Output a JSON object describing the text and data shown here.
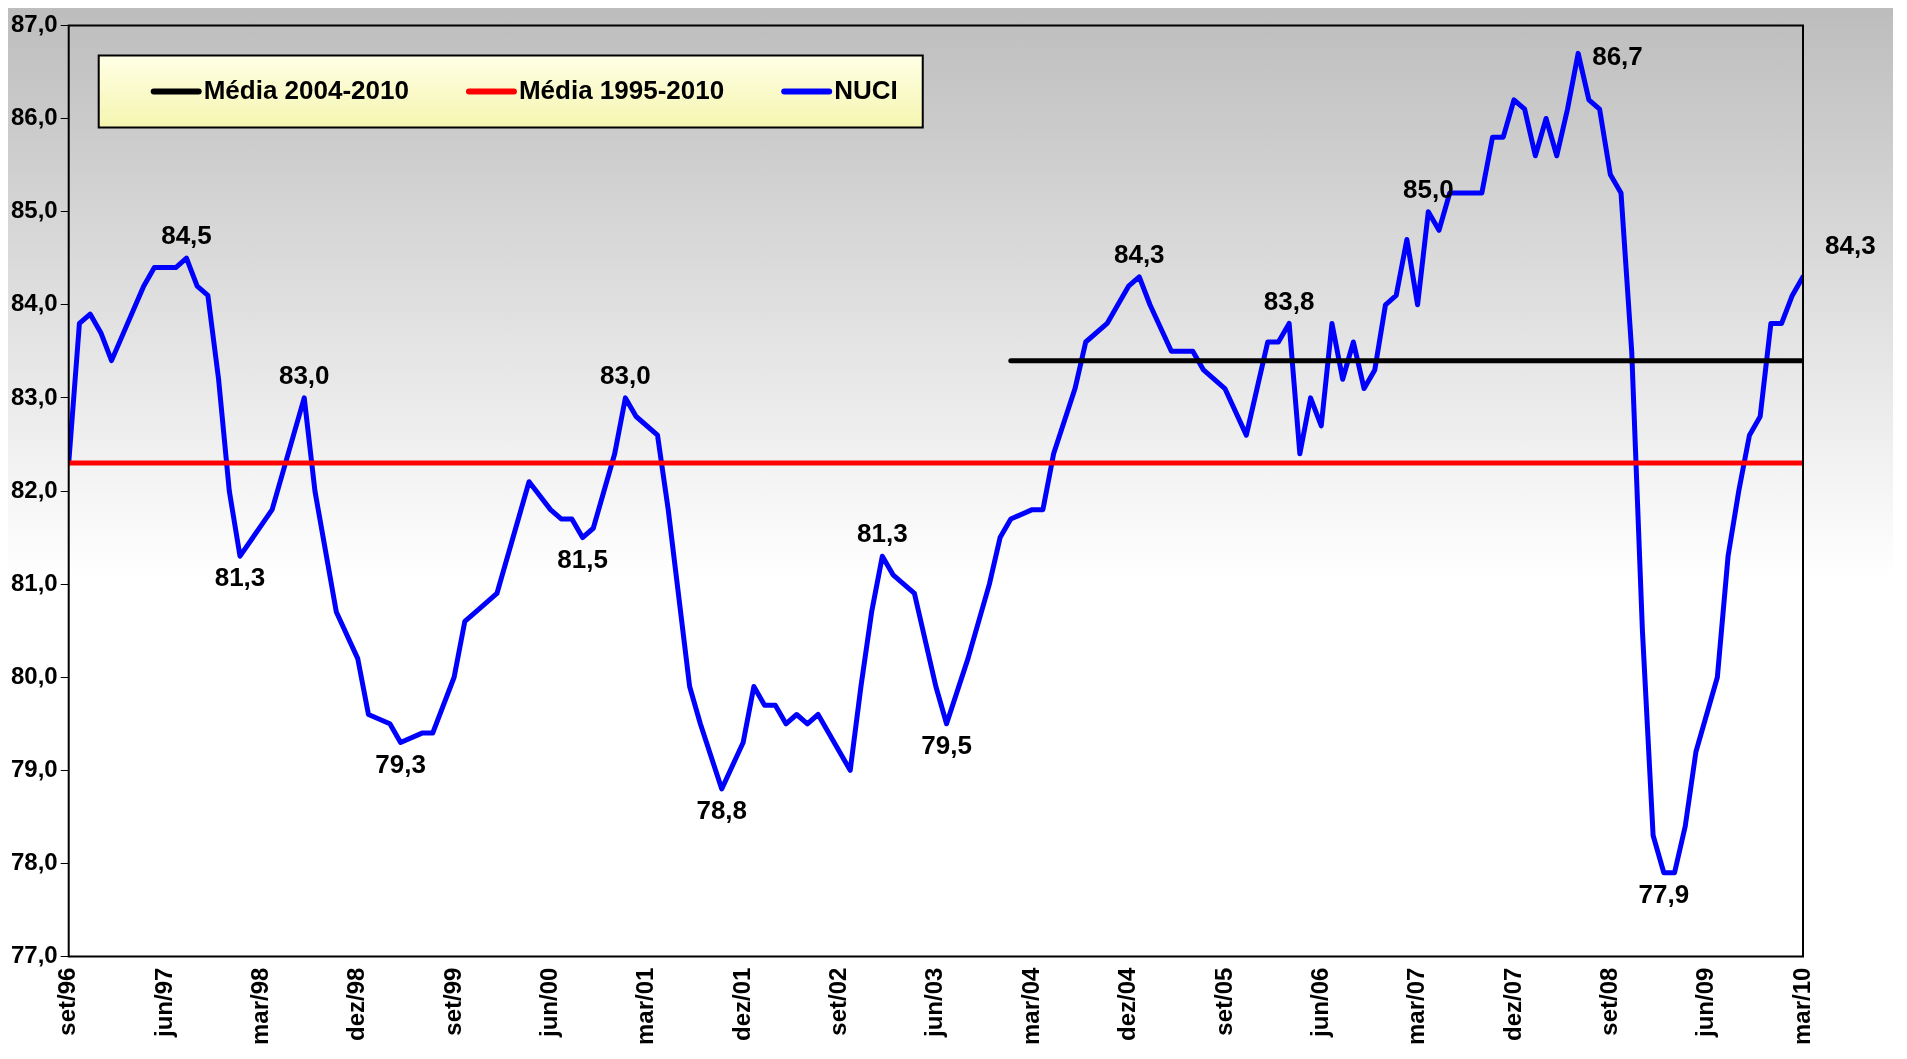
{
  "chart_data": {
    "type": "line",
    "legend": "top left",
    "grid": false,
    "marker": "none",
    "line_style": "solid",
    "xlim": [
      "1996-09",
      "2010-03"
    ],
    "xticks": [
      {
        "value": "1996-09",
        "label": "set/96"
      },
      {
        "value": "1997-06",
        "label": "jun/97"
      },
      {
        "value": "1998-03",
        "label": "mar/98"
      },
      {
        "value": "1998-12",
        "label": "dez/98"
      },
      {
        "value": "1999-09",
        "label": "set/99"
      },
      {
        "value": "2000-06",
        "label": "jun/00"
      },
      {
        "value": "2001-03",
        "label": "mar/01"
      },
      {
        "value": "2001-12",
        "label": "dez/01"
      },
      {
        "value": "2002-09",
        "label": "set/02"
      },
      {
        "value": "2003-06",
        "label": "jun/03"
      },
      {
        "value": "2004-03",
        "label": "mar/04"
      },
      {
        "value": "2004-12",
        "label": "dez/04"
      },
      {
        "value": "2005-09",
        "label": "set/05"
      },
      {
        "value": "2006-06",
        "label": "jun/06"
      },
      {
        "value": "2007-03",
        "label": "mar/07"
      },
      {
        "value": "2007-12",
        "label": "dez/07"
      },
      {
        "value": "2008-09",
        "label": "set/08"
      },
      {
        "value": "2009-06",
        "label": "jun/09"
      },
      {
        "value": "2010-03",
        "label": "mar/10"
      }
    ],
    "ylim": [
      77,
      87
    ],
    "yticks": [
      {
        "value": 77,
        "label": "77,0"
      },
      {
        "value": 78,
        "label": "78,0"
      },
      {
        "value": 79,
        "label": "79,0"
      },
      {
        "value": 80,
        "label": "80,0"
      },
      {
        "value": 81,
        "label": "81,0"
      },
      {
        "value": 82,
        "label": "82,0"
      },
      {
        "value": 83,
        "label": "83,0"
      },
      {
        "value": 84,
        "label": "84,0"
      },
      {
        "value": 85,
        "label": "85,0"
      },
      {
        "value": 86,
        "label": "86,0"
      },
      {
        "value": 87,
        "label": "87,0"
      }
    ],
    "series": [
      {
        "name": "Média 2004-2010",
        "color": "#000000",
        "x": [
          "2004-01",
          "2010-03"
        ],
        "values": [
          83.4,
          83.4
        ]
      },
      {
        "name": "Média 1995-2010",
        "color": "#ff0000",
        "x": [
          "1996-09",
          "2010-03"
        ],
        "values": [
          82.3,
          82.3
        ]
      },
      {
        "name": "NUCI",
        "color": "#0000ff",
        "x": [
          "1996-09",
          "1996-10",
          "1996-11",
          "1996-12",
          "1997-01",
          "1997-04",
          "1997-05",
          "1997-07",
          "1997-08",
          "1997-09",
          "1997-10",
          "1997-11",
          "1997-12",
          "1998-01",
          "1998-04",
          "1998-06",
          "1998-07",
          "1998-08",
          "1998-10",
          "1998-12",
          "1999-01",
          "1999-03",
          "1999-04",
          "1999-06",
          "1999-07",
          "1999-09",
          "1999-10",
          "1999-11",
          "2000-01",
          "2000-03",
          "2000-04",
          "2000-06",
          "2000-07",
          "2000-08",
          "2000-09",
          "2000-10",
          "2000-12",
          "2001-01",
          "2001-02",
          "2001-04",
          "2001-05",
          "2001-07",
          "2001-08",
          "2001-10",
          "2001-12",
          "2002-01",
          "2002-02",
          "2002-03",
          "2002-04",
          "2002-05",
          "2002-06",
          "2002-07",
          "2002-09",
          "2002-10",
          "2002-11",
          "2002-12",
          "2003-01",
          "2003-02",
          "2003-04",
          "2003-05",
          "2003-06",
          "2003-07",
          "2003-09",
          "2003-11",
          "2003-12",
          "2004-01",
          "2004-03",
          "2004-04",
          "2004-05",
          "2004-07",
          "2004-08",
          "2004-10",
          "2004-11",
          "2004-12",
          "2005-01",
          "2005-02",
          "2005-04",
          "2005-06",
          "2005-07",
          "2005-09",
          "2005-11",
          "2005-12",
          "2006-01",
          "2006-02",
          "2006-03",
          "2006-04",
          "2006-05",
          "2006-06",
          "2006-07",
          "2006-08",
          "2006-09",
          "2006-10",
          "2006-11",
          "2006-12",
          "2007-01",
          "2007-02",
          "2007-03",
          "2007-04",
          "2007-05",
          "2007-06",
          "2007-09",
          "2007-10",
          "2007-11",
          "2007-12",
          "2008-01",
          "2008-02",
          "2008-03",
          "2008-04",
          "2008-05",
          "2008-06",
          "2008-07",
          "2008-08",
          "2008-09",
          "2008-10",
          "2008-11",
          "2008-12",
          "2009-01",
          "2009-02",
          "2009-03",
          "2009-04",
          "2009-05",
          "2009-07",
          "2009-08",
          "2009-09",
          "2009-10",
          "2009-11",
          "2009-12",
          "2010-01",
          "2010-02",
          "2010-03"
        ],
        "values": [
          82.3,
          83.8,
          83.9,
          83.7,
          83.4,
          84.2,
          84.4,
          84.4,
          84.5,
          84.2,
          84.1,
          83.2,
          82.0,
          81.3,
          81.8,
          82.6,
          83.0,
          82.0,
          80.7,
          80.2,
          79.6,
          79.5,
          79.3,
          79.4,
          79.4,
          80.0,
          80.6,
          80.7,
          80.9,
          81.7,
          82.1,
          81.8,
          81.7,
          81.7,
          81.5,
          81.6,
          82.4,
          83.0,
          82.8,
          82.6,
          81.8,
          79.9,
          79.5,
          78.8,
          79.3,
          79.9,
          79.7,
          79.7,
          79.5,
          79.6,
          79.5,
          79.6,
          79.2,
          79.0,
          79.9,
          80.7,
          81.3,
          81.1,
          80.9,
          80.4,
          79.9,
          79.5,
          80.2,
          81.0,
          81.5,
          81.7,
          81.8,
          81.8,
          82.4,
          83.1,
          83.6,
          83.8,
          84.0,
          84.2,
          84.3,
          84.0,
          83.5,
          83.5,
          83.3,
          83.1,
          82.6,
          83.1,
          83.6,
          83.6,
          83.8,
          82.4,
          83.0,
          82.7,
          83.8,
          83.2,
          83.6,
          83.1,
          83.3,
          84.0,
          84.1,
          84.7,
          84.0,
          85.0,
          84.8,
          85.2,
          85.2,
          85.8,
          85.8,
          86.2,
          86.1,
          85.6,
          86.0,
          85.6,
          86.1,
          86.7,
          86.2,
          86.1,
          85.4,
          85.2,
          83.5,
          80.5,
          78.3,
          77.9,
          77.9,
          78.4,
          79.2,
          80.0,
          81.3,
          82.0,
          82.6,
          82.8,
          83.8,
          83.8,
          84.1,
          84.3
        ]
      }
    ],
    "annotations": [
      {
        "text": "84,5",
        "x": "1997-08",
        "y": 84.5
      },
      {
        "text": "81,3",
        "x": "1998-01",
        "y": 81.3
      },
      {
        "text": "83,0",
        "x": "1998-07",
        "y": 83.0
      },
      {
        "text": "79,3",
        "x": "1999-04",
        "y": 79.3
      },
      {
        "text": "81,5",
        "x": "2000-09",
        "y": 81.5
      },
      {
        "text": "83,0",
        "x": "2001-01",
        "y": 83.0
      },
      {
        "text": "78,8",
        "x": "2001-10",
        "y": 78.8
      },
      {
        "text": "81,3",
        "x": "2003-01",
        "y": 81.3
      },
      {
        "text": "79,5",
        "x": "2003-07",
        "y": 79.5
      },
      {
        "text": "84,3",
        "x": "2005-01",
        "y": 84.3
      },
      {
        "text": "83,8",
        "x": "2006-03",
        "y": 83.8
      },
      {
        "text": "85,0",
        "x": "2007-04",
        "y": 85.0
      },
      {
        "text": "86,7",
        "x": "2008-06",
        "y": 86.7
      },
      {
        "text": "77,9",
        "x": "2009-02",
        "y": 77.9
      },
      {
        "text": "84,3",
        "x": "2010-03",
        "y": 84.3
      }
    ]
  }
}
